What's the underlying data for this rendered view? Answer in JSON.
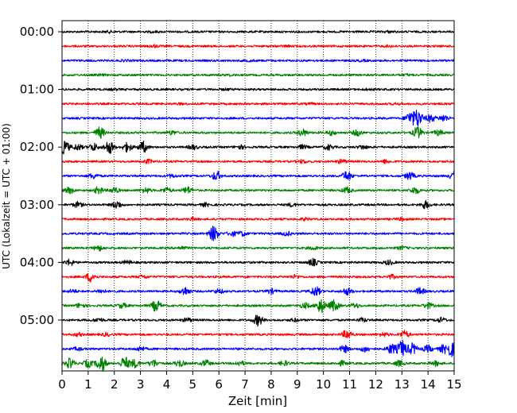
{
  "chart_data": {
    "type": "line",
    "xlabel": "Zeit  [min]",
    "ylabel": "UTC (Lokalzeit = UTC + 01:00)",
    "xlim": [
      0,
      15
    ],
    "x_ticks": [
      "0",
      "1",
      "2",
      "3",
      "4",
      "5",
      "6",
      "7",
      "8",
      "9",
      "10",
      "11",
      "12",
      "13",
      "14",
      "15"
    ],
    "grid": "vertical dotted at each minute",
    "trace_interval_minutes": 15,
    "trace_colors": [
      "#000000",
      "#ff0000",
      "#0000ff",
      "#008000"
    ],
    "y_ticks": [
      {
        "label": "00:00",
        "trace": 0
      },
      {
        "label": "01:00",
        "trace": 4
      },
      {
        "label": "02:00",
        "trace": 8
      },
      {
        "label": "03:00",
        "trace": 12
      },
      {
        "label": "04:00",
        "trace": 16
      },
      {
        "label": "05:00",
        "trace": 20
      }
    ],
    "traces": [
      {
        "start": "00:00",
        "bursts": [
          [
            1.8,
            0.4
          ],
          [
            3.5,
            0.3
          ],
          [
            12.5,
            0.4
          ]
        ]
      },
      {
        "start": "00:15",
        "bursts": [
          [
            3.5,
            0.6
          ],
          [
            8.6,
            0.3
          ],
          [
            12.5,
            0.4
          ]
        ]
      },
      {
        "start": "00:30",
        "bursts": [
          [
            2.4,
            0.3
          ],
          [
            7.2,
            0.3
          ],
          [
            11.5,
            0.3
          ]
        ]
      },
      {
        "start": "00:45",
        "bursts": [
          [
            1.5,
            0.3
          ],
          [
            6.4,
            0.3
          ],
          [
            13.2,
            0.3
          ]
        ]
      },
      {
        "start": "01:00",
        "bursts": [
          [
            2.0,
            0.3
          ],
          [
            6.3,
            0.3
          ],
          [
            11.7,
            0.3
          ]
        ]
      },
      {
        "start": "01:15",
        "bursts": [
          [
            4.6,
            0.3
          ],
          [
            9.5,
            0.3
          ],
          [
            12.8,
            0.3
          ]
        ]
      },
      {
        "start": "01:30",
        "bursts": [
          [
            13.3,
            3.0
          ],
          [
            13.6,
            5.0
          ],
          [
            14.1,
            2.0
          ],
          [
            14.6,
            1.8
          ]
        ]
      },
      {
        "start": "01:45",
        "bursts": [
          [
            1.45,
            3.0
          ],
          [
            4.2,
            1.0
          ],
          [
            9.2,
            1.8
          ],
          [
            10.3,
            1.2
          ],
          [
            11.3,
            1.6
          ],
          [
            13.6,
            3.0
          ],
          [
            14.4,
            1.4
          ]
        ]
      },
      {
        "start": "02:00",
        "bursts": [
          [
            0.1,
            3.6
          ],
          [
            0.6,
            1.6
          ],
          [
            1.2,
            2.0
          ],
          [
            1.8,
            3.6
          ],
          [
            2.5,
            2.4
          ],
          [
            3.1,
            3.0
          ],
          [
            5.0,
            1.2
          ],
          [
            6.8,
            1.0
          ],
          [
            9.2,
            1.0
          ],
          [
            10.2,
            1.4
          ],
          [
            11.5,
            1.0
          ]
        ]
      },
      {
        "start": "02:15",
        "bursts": [
          [
            3.3,
            1.0
          ],
          [
            9.2,
            0.8
          ],
          [
            10.7,
            1.0
          ],
          [
            12.4,
            0.9
          ]
        ]
      },
      {
        "start": "02:30",
        "bursts": [
          [
            1.2,
            1.4
          ],
          [
            4.2,
            0.8
          ],
          [
            5.9,
            2.4
          ],
          [
            10.9,
            2.6
          ],
          [
            13.3,
            2.0
          ],
          [
            15.0,
            2.0
          ]
        ]
      },
      {
        "start": "02:45",
        "bursts": [
          [
            0.3,
            1.6
          ],
          [
            1.4,
            1.8
          ],
          [
            2.0,
            1.6
          ],
          [
            3.2,
            1.4
          ],
          [
            4.0,
            1.4
          ],
          [
            4.8,
            1.8
          ],
          [
            10.9,
            1.6
          ],
          [
            13.5,
            1.8
          ]
        ]
      },
      {
        "start": "03:00",
        "bursts": [
          [
            0.6,
            1.4
          ],
          [
            2.1,
            2.0
          ],
          [
            5.5,
            0.8
          ],
          [
            8.8,
            0.8
          ],
          [
            13.9,
            2.0
          ]
        ]
      },
      {
        "start": "03:15",
        "bursts": [
          [
            5.0,
            0.6
          ],
          [
            9.3,
            0.6
          ],
          [
            13.0,
            0.6
          ]
        ]
      },
      {
        "start": "03:30",
        "bursts": [
          [
            5.8,
            4.2
          ],
          [
            6.5,
            1.2
          ],
          [
            6.9,
            1.2
          ],
          [
            8.6,
            1.0
          ]
        ]
      },
      {
        "start": "03:45",
        "bursts": [
          [
            1.4,
            1.4
          ],
          [
            4.6,
            0.8
          ],
          [
            9.6,
            0.8
          ],
          [
            13.0,
            0.8
          ]
        ]
      },
      {
        "start": "04:00",
        "bursts": [
          [
            0.3,
            1.6
          ],
          [
            2.5,
            0.8
          ],
          [
            9.6,
            1.8
          ],
          [
            12.5,
            1.2
          ]
        ]
      },
      {
        "start": "04:15",
        "bursts": [
          [
            1.1,
            2.6
          ],
          [
            3.1,
            0.8
          ],
          [
            8.9,
            0.8
          ],
          [
            12.6,
            1.0
          ]
        ]
      },
      {
        "start": "04:30",
        "bursts": [
          [
            0.4,
            0.8
          ],
          [
            1.5,
            1.0
          ],
          [
            4.7,
            2.2
          ],
          [
            6.0,
            1.2
          ],
          [
            8.0,
            1.2
          ],
          [
            9.7,
            2.6
          ],
          [
            10.9,
            1.8
          ],
          [
            13.7,
            1.8
          ]
        ]
      },
      {
        "start": "04:45",
        "bursts": [
          [
            0.7,
            1.2
          ],
          [
            2.3,
            1.2
          ],
          [
            3.6,
            3.0
          ],
          [
            9.3,
            1.4
          ],
          [
            9.9,
            3.8
          ],
          [
            10.4,
            3.0
          ],
          [
            11.2,
            1.2
          ],
          [
            14.0,
            1.6
          ]
        ]
      },
      {
        "start": "05:00",
        "bursts": [
          [
            1.4,
            1.0
          ],
          [
            4.8,
            1.0
          ],
          [
            7.5,
            3.0
          ],
          [
            8.9,
            0.8
          ],
          [
            11.5,
            1.0
          ],
          [
            14.5,
            1.2
          ]
        ]
      },
      {
        "start": "05:15",
        "bursts": [
          [
            0.6,
            0.8
          ],
          [
            1.7,
            0.8
          ],
          [
            10.9,
            2.4
          ],
          [
            12.3,
            1.0
          ],
          [
            13.1,
            2.0
          ]
        ]
      },
      {
        "start": "05:30",
        "bursts": [
          [
            0.6,
            0.8
          ],
          [
            3.0,
            1.2
          ],
          [
            10.8,
            1.8
          ],
          [
            11.6,
            1.6
          ],
          [
            12.6,
            2.6
          ],
          [
            13.0,
            4.6
          ],
          [
            13.4,
            3.0
          ],
          [
            14.0,
            1.8
          ],
          [
            14.6,
            2.0
          ],
          [
            14.9,
            4.0
          ]
        ]
      },
      {
        "start": "05:45",
        "bursts": [
          [
            0.3,
            2.6
          ],
          [
            1.0,
            2.0
          ],
          [
            1.5,
            4.4
          ],
          [
            2.4,
            3.4
          ],
          [
            2.8,
            2.2
          ],
          [
            3.5,
            2.0
          ],
          [
            4.5,
            1.8
          ],
          [
            5.5,
            1.6
          ],
          [
            6.8,
            1.2
          ],
          [
            8.5,
            1.2
          ],
          [
            10.7,
            1.2
          ],
          [
            12.9,
            1.4
          ],
          [
            14.3,
            1.2
          ]
        ]
      }
    ]
  }
}
